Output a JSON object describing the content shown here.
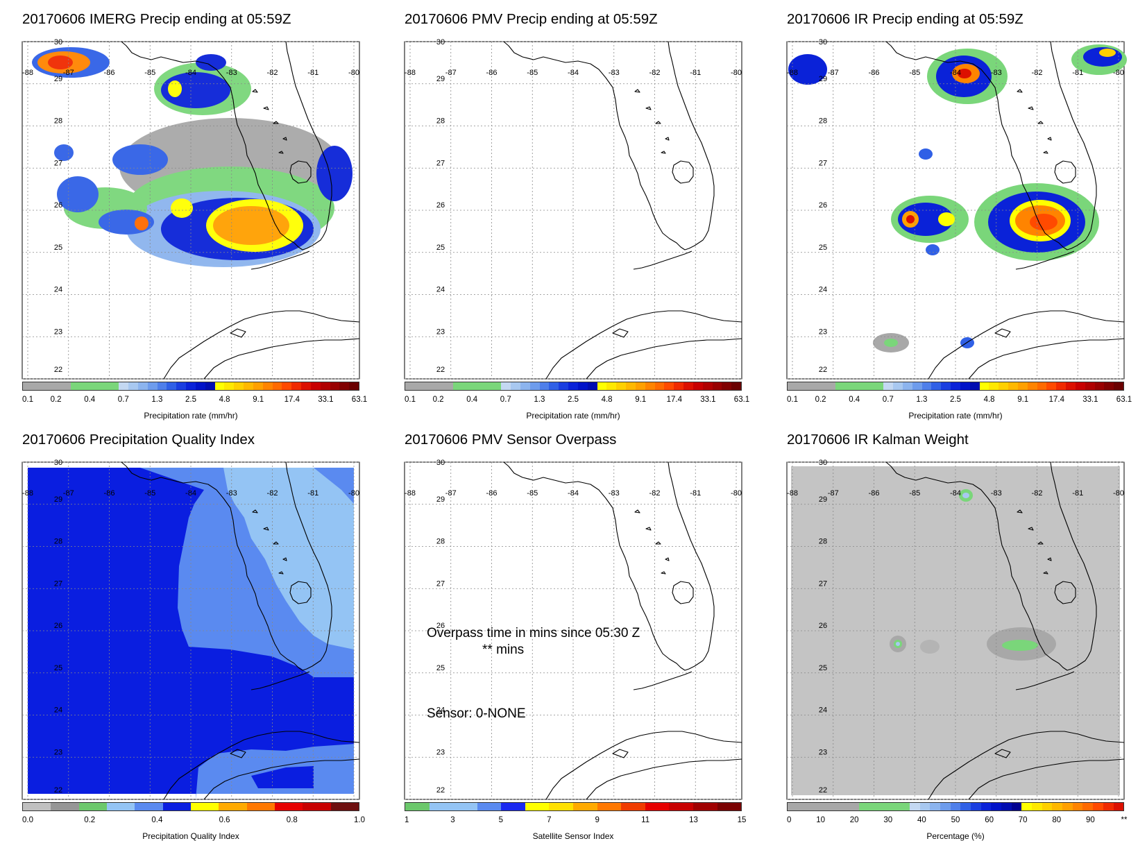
{
  "panels": [
    {
      "title": "20170606 IMERG Precip ending at 05:59Z",
      "colorbar_label": "Precipitation rate (mm/hr)"
    },
    {
      "title": "20170606 PMV Precip ending at 05:59Z",
      "colorbar_label": "Precipitation rate (mm/hr)"
    },
    {
      "title": "20170606 IR Precip ending at 05:59Z",
      "colorbar_label": "Precipitation rate (mm/hr)"
    },
    {
      "title": "20170606 Precipitation Quality Index",
      "colorbar_label": "Precipitation Quality Index"
    },
    {
      "title": "20170606 PMV Sensor Overpass",
      "colorbar_label": "Satellite Sensor Index"
    },
    {
      "title": "20170606 IR Kalman Weight",
      "colorbar_label": "Percentage (%)"
    }
  ],
  "map": {
    "lon_labels": [
      "-88",
      "-87",
      "-86",
      "-85",
      "-84",
      "-83",
      "-82",
      "-81",
      "-80"
    ],
    "lat_labels": [
      "30",
      "29",
      "28",
      "27",
      "26",
      "25",
      "24",
      "23",
      "22"
    ]
  },
  "colorbars": {
    "precip": {
      "ticks": [
        "0.1",
        "0.2",
        "0.4",
        "0.7",
        "1.3",
        "2.5",
        "4.8",
        "9.1",
        "17.4",
        "33.1",
        "63.1"
      ],
      "colors": [
        "#a8a8a8",
        "#a8a8a8",
        "#a8a8a8",
        "#a8a8a8",
        "#a8a8a8",
        "#7ad67a",
        "#7ad67a",
        "#7ad67a",
        "#7ad67a",
        "#7ad67a",
        "#c4d8f2",
        "#a8c8f0",
        "#8cb4ee",
        "#6e9cec",
        "#4f7fea",
        "#3060e6",
        "#1a3ee0",
        "#0a22d8",
        "#0012c8",
        "#000cb0",
        "#ffff00",
        "#ffe800",
        "#ffd000",
        "#ffb800",
        "#ffa000",
        "#ff8400",
        "#ff6a00",
        "#ff4a00",
        "#f02a00",
        "#dc1000",
        "#c80000",
        "#b00000",
        "#980000",
        "#800000",
        "#6a0000"
      ]
    },
    "pqi": {
      "ticks": [
        "0.0",
        "0.2",
        "0.4",
        "0.6",
        "0.8",
        "1.0"
      ],
      "colors": [
        "#c0c0c0",
        "#969696",
        "#6cc86c",
        "#94c4f4",
        "#5a8af0",
        "#0a1ee0",
        "#ffff00",
        "#ffaa00",
        "#ff7800",
        "#e60000",
        "#c80000",
        "#6e1010"
      ]
    },
    "sensor": {
      "ticks": [
        "1",
        "3",
        "5",
        "7",
        "9",
        "11",
        "13",
        "15"
      ],
      "colors": [
        "#6cc86c",
        "#94c4f4",
        "#94c4f4",
        "#5a8af0",
        "#1a28f0",
        "#ffff00",
        "#ffe000",
        "#ffaa00",
        "#ff7800",
        "#f03c00",
        "#e60000",
        "#c80000",
        "#a00000",
        "#7a0000"
      ]
    },
    "kalman": {
      "ticks": [
        "0",
        "10",
        "20",
        "30",
        "40",
        "50",
        "60",
        "70",
        "80",
        "90",
        "**"
      ],
      "colors": [
        "#a8a8a8",
        "#a8a8a8",
        "#a8a8a8",
        "#a8a8a8",
        "#a8a8a8",
        "#a8a8a8",
        "#a8a8a8",
        "#7ad67a",
        "#7ad67a",
        "#7ad67a",
        "#7ad67a",
        "#7ad67a",
        "#c4d8f2",
        "#a8c8f0",
        "#8cb4ee",
        "#6e9cec",
        "#4f7fea",
        "#3060e6",
        "#1a3ee0",
        "#0a22d8",
        "#0012c8",
        "#000cb0",
        "#000090",
        "#ffff00",
        "#ffe800",
        "#ffd000",
        "#ffb800",
        "#ffa000",
        "#ff8400",
        "#ff6a00",
        "#ff4a00",
        "#f02a00",
        "#dc1000"
      ]
    }
  },
  "overpass": {
    "time_line": "Overpass time in mins since 05:30 Z",
    "mins_line": "** mins",
    "sensor_line": "Sensor:   0-NONE"
  }
}
